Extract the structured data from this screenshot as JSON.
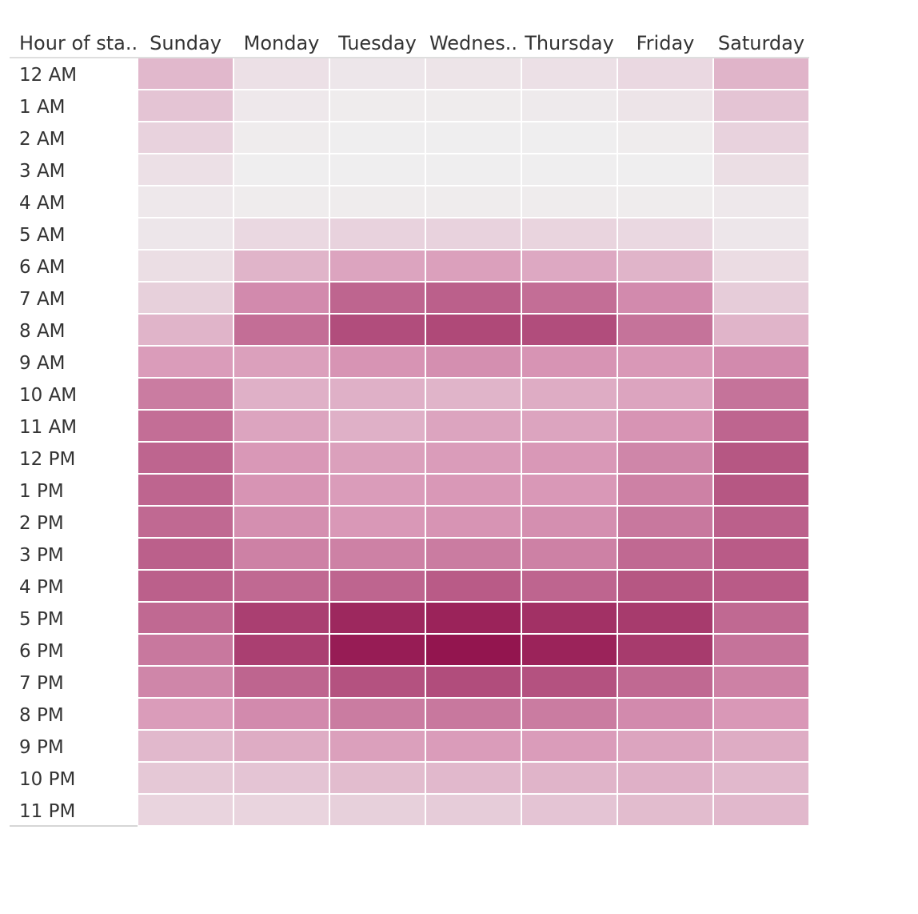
{
  "chart_data": {
    "type": "heatmap",
    "title": "",
    "row_header": "Hour of sta..",
    "columns": [
      "Sunday",
      "Monday",
      "Tuesday",
      "Wednes..",
      "Thursday",
      "Friday",
      "Saturday"
    ],
    "rows": [
      "12 AM",
      "1 AM",
      "2 AM",
      "3 AM",
      "4 AM",
      "5 AM",
      "6 AM",
      "7 AM",
      "8 AM",
      "9 AM",
      "10 AM",
      "11 AM",
      "12 PM",
      "1 PM",
      "2 PM",
      "3 PM",
      "4 PM",
      "5 PM",
      "6 PM",
      "7 PM",
      "8 PM",
      "9 PM",
      "10 PM",
      "11 PM"
    ],
    "values": [
      [
        0.28,
        0.08,
        0.05,
        0.06,
        0.08,
        0.12,
        0.3
      ],
      [
        0.22,
        0.04,
        0.02,
        0.02,
        0.03,
        0.06,
        0.22
      ],
      [
        0.15,
        0.02,
        0.01,
        0.01,
        0.01,
        0.02,
        0.15
      ],
      [
        0.08,
        0.01,
        0.01,
        0.01,
        0.01,
        0.01,
        0.09
      ],
      [
        0.04,
        0.02,
        0.02,
        0.02,
        0.02,
        0.02,
        0.04
      ],
      [
        0.05,
        0.12,
        0.15,
        0.15,
        0.14,
        0.12,
        0.05
      ],
      [
        0.09,
        0.3,
        0.38,
        0.4,
        0.36,
        0.3,
        0.1
      ],
      [
        0.16,
        0.5,
        0.66,
        0.68,
        0.62,
        0.5,
        0.18
      ],
      [
        0.3,
        0.62,
        0.76,
        0.78,
        0.76,
        0.6,
        0.3
      ],
      [
        0.42,
        0.4,
        0.46,
        0.48,
        0.46,
        0.44,
        0.5
      ],
      [
        0.56,
        0.32,
        0.32,
        0.3,
        0.34,
        0.38,
        0.6
      ],
      [
        0.62,
        0.38,
        0.32,
        0.38,
        0.38,
        0.46,
        0.66
      ],
      [
        0.66,
        0.44,
        0.4,
        0.42,
        0.44,
        0.52,
        0.72
      ],
      [
        0.66,
        0.46,
        0.42,
        0.44,
        0.44,
        0.54,
        0.72
      ],
      [
        0.64,
        0.48,
        0.44,
        0.46,
        0.48,
        0.58,
        0.68
      ],
      [
        0.68,
        0.54,
        0.54,
        0.56,
        0.54,
        0.64,
        0.7
      ],
      [
        0.68,
        0.64,
        0.66,
        0.7,
        0.66,
        0.72,
        0.7
      ],
      [
        0.64,
        0.82,
        0.92,
        0.94,
        0.88,
        0.84,
        0.64
      ],
      [
        0.58,
        0.82,
        0.97,
        1.0,
        0.94,
        0.84,
        0.6
      ],
      [
        0.52,
        0.66,
        0.74,
        0.76,
        0.74,
        0.64,
        0.54
      ],
      [
        0.42,
        0.5,
        0.56,
        0.58,
        0.56,
        0.5,
        0.44
      ],
      [
        0.28,
        0.34,
        0.4,
        0.42,
        0.42,
        0.38,
        0.34
      ],
      [
        0.2,
        0.22,
        0.26,
        0.28,
        0.3,
        0.32,
        0.28
      ],
      [
        0.14,
        0.14,
        0.16,
        0.18,
        0.22,
        0.26,
        0.28
      ]
    ],
    "color_range": [
      "#f0f0f0",
      "#93154f"
    ],
    "grid": false,
    "legend": "none"
  }
}
